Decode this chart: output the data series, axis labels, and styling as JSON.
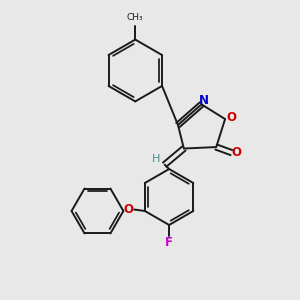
{
  "background_color": "#e8e8e8",
  "bond_color": "#1a1a1a",
  "atom_colors": {
    "N": "#0000cc",
    "O": "#cc0000",
    "F": "#cc00cc",
    "H": "#4a9090",
    "C": "#1a1a1a"
  },
  "figsize": [
    3.0,
    3.0
  ],
  "dpi": 100,
  "xlim": [
    0,
    10
  ],
  "ylim": [
    0,
    10
  ]
}
